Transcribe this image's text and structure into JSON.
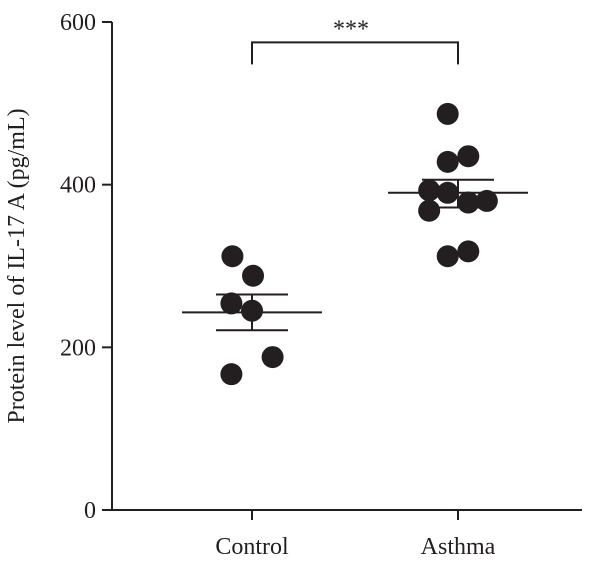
{
  "chart_data": {
    "type": "scatter",
    "title": "",
    "xlabel": "",
    "ylabel": "Protein level of IL-17 A (pg/mL)",
    "ylim": [
      0,
      600
    ],
    "yticks": [
      0,
      200,
      400,
      600
    ],
    "categories": [
      "Control",
      "Asthma"
    ],
    "series": [
      {
        "category": "Control",
        "points": [
          {
            "dx": -0.19,
            "y": 312
          },
          {
            "dx": 0.01,
            "y": 288
          },
          {
            "dx": -0.2,
            "y": 254
          },
          {
            "dx": 0.0,
            "y": 245
          },
          {
            "dx": 0.2,
            "y": 188
          },
          {
            "dx": -0.2,
            "y": 167
          }
        ],
        "mean": 243,
        "sem_low": 221,
        "sem_high": 265
      },
      {
        "category": "Asthma",
        "points": [
          {
            "dx": -0.1,
            "y": 487
          },
          {
            "dx": 0.1,
            "y": 435
          },
          {
            "dx": -0.1,
            "y": 428
          },
          {
            "dx": -0.28,
            "y": 393
          },
          {
            "dx": -0.1,
            "y": 390
          },
          {
            "dx": 0.28,
            "y": 380
          },
          {
            "dx": 0.1,
            "y": 378
          },
          {
            "dx": -0.28,
            "y": 368
          },
          {
            "dx": 0.1,
            "y": 318
          },
          {
            "dx": -0.1,
            "y": 312
          }
        ],
        "mean": 390,
        "sem_low": 372,
        "sem_high": 406
      }
    ],
    "significance": {
      "from": "Control",
      "to": "Asthma",
      "label": "***",
      "y": 575
    },
    "grid": false,
    "legend": "none"
  }
}
